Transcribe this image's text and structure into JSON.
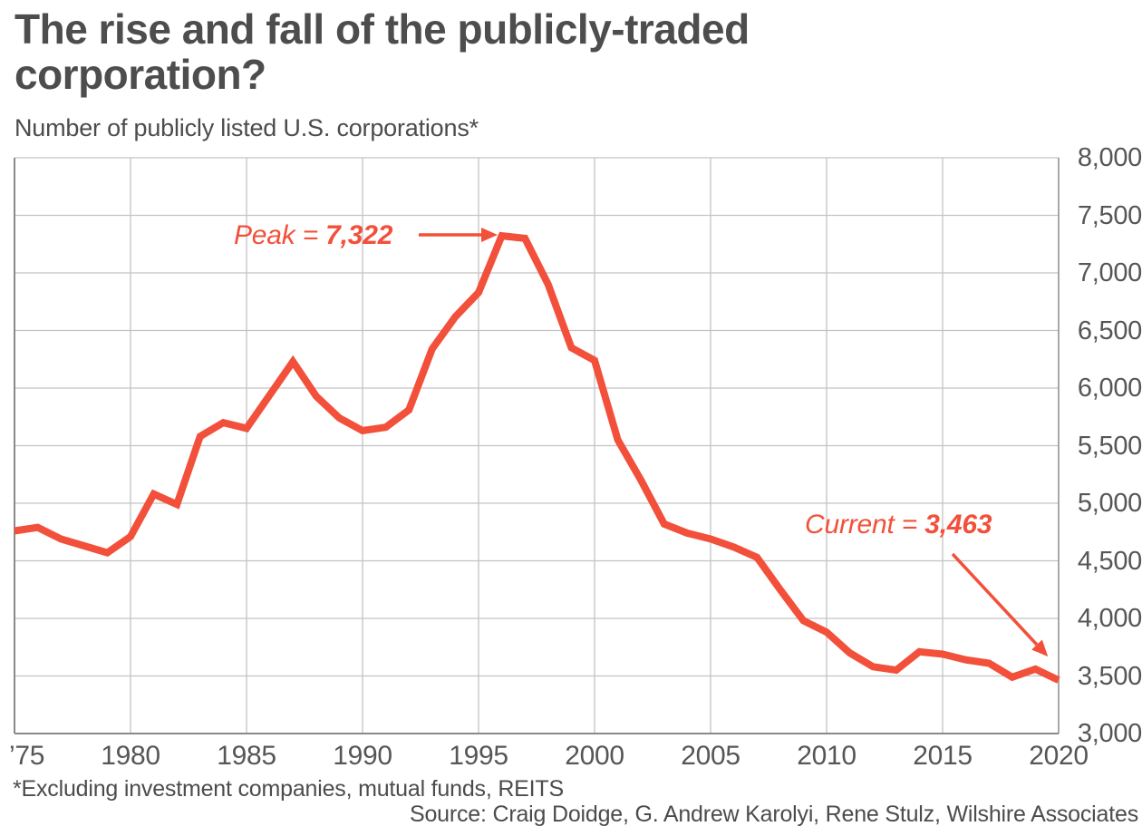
{
  "header": {
    "title": "The rise and fall of the publicly-traded corporation?",
    "subtitle": "Number of publicly listed U.S. corporations*"
  },
  "footer": {
    "footnote": "*Excluding investment companies, mutual funds, REITS",
    "source": "Source: Craig Doidge, G. Andrew Karolyi, Rene Stulz, Wilshire Associates"
  },
  "annotations": {
    "peak": {
      "prefix": "Peak = ",
      "value": "7,322"
    },
    "current": {
      "prefix": "Current  = ",
      "value": "3,463"
    }
  },
  "colors": {
    "line": "#f2503a",
    "annotation": "#f2503a",
    "title_text": "#4d4d4d",
    "axis_text": "#565656",
    "gridline": "#c3c3c3",
    "axis_border": "#8a8a8a",
    "background": "#ffffff"
  },
  "chart_data": {
    "type": "line",
    "title": "The rise and fall of the publicly-traded corporation?",
    "subtitle": "Number of publicly listed U.S. corporations*",
    "xlabel": "",
    "ylabel": "",
    "xlim": [
      1975,
      2020
    ],
    "ylim": [
      3000,
      8000
    ],
    "grid": true,
    "legend": "none",
    "line_color": "#f2503a",
    "line_width": 8,
    "x_ticks": [
      1975,
      1980,
      1985,
      1990,
      1995,
      2000,
      2005,
      2010,
      2015,
      2020
    ],
    "x_tick_labels": [
      "’75",
      "1980",
      "1985",
      "1990",
      "1995",
      "2000",
      "2005",
      "2010",
      "2015",
      "2020"
    ],
    "y_ticks": [
      3000,
      3500,
      4000,
      4500,
      5000,
      5500,
      6000,
      6500,
      7000,
      7500,
      8000
    ],
    "y_tick_labels": [
      "3,000",
      "3,500",
      "4,000",
      "4,500",
      "5,000",
      "5,500",
      "6,000",
      "6,500",
      "7,000",
      "7,500",
      "8,000"
    ],
    "series": [
      {
        "name": "Number of publicly listed U.S. corporations",
        "x": [
          1975,
          1976,
          1977,
          1978,
          1979,
          1980,
          1981,
          1982,
          1983,
          1984,
          1985,
          1986,
          1987,
          1988,
          1989,
          1990,
          1991,
          1992,
          1993,
          1994,
          1995,
          1996,
          1997,
          1998,
          1999,
          2000,
          2001,
          2002,
          2003,
          2004,
          2005,
          2006,
          2007,
          2008,
          2009,
          2010,
          2011,
          2012,
          2013,
          2014,
          2015,
          2016,
          2017,
          2018,
          2019,
          2020
        ],
        "values": [
          4760,
          4790,
          4690,
          4630,
          4570,
          4710,
          5080,
          4990,
          5580,
          5700,
          5650,
          5940,
          6230,
          5930,
          5740,
          5630,
          5660,
          5810,
          6340,
          6620,
          6830,
          7322,
          7300,
          6900,
          6350,
          6240,
          5550,
          5200,
          4820,
          4740,
          4690,
          4620,
          4530,
          4250,
          3980,
          3880,
          3700,
          3580,
          3550,
          3710,
          3690,
          3640,
          3610,
          3490,
          3560,
          3463
        ]
      }
    ],
    "annotations": [
      {
        "text": "Peak = 7,322",
        "target_x": 1996,
        "target_y": 7322
      },
      {
        "text": "Current  = 3,463",
        "target_x": 2020,
        "target_y": 3463
      }
    ]
  }
}
